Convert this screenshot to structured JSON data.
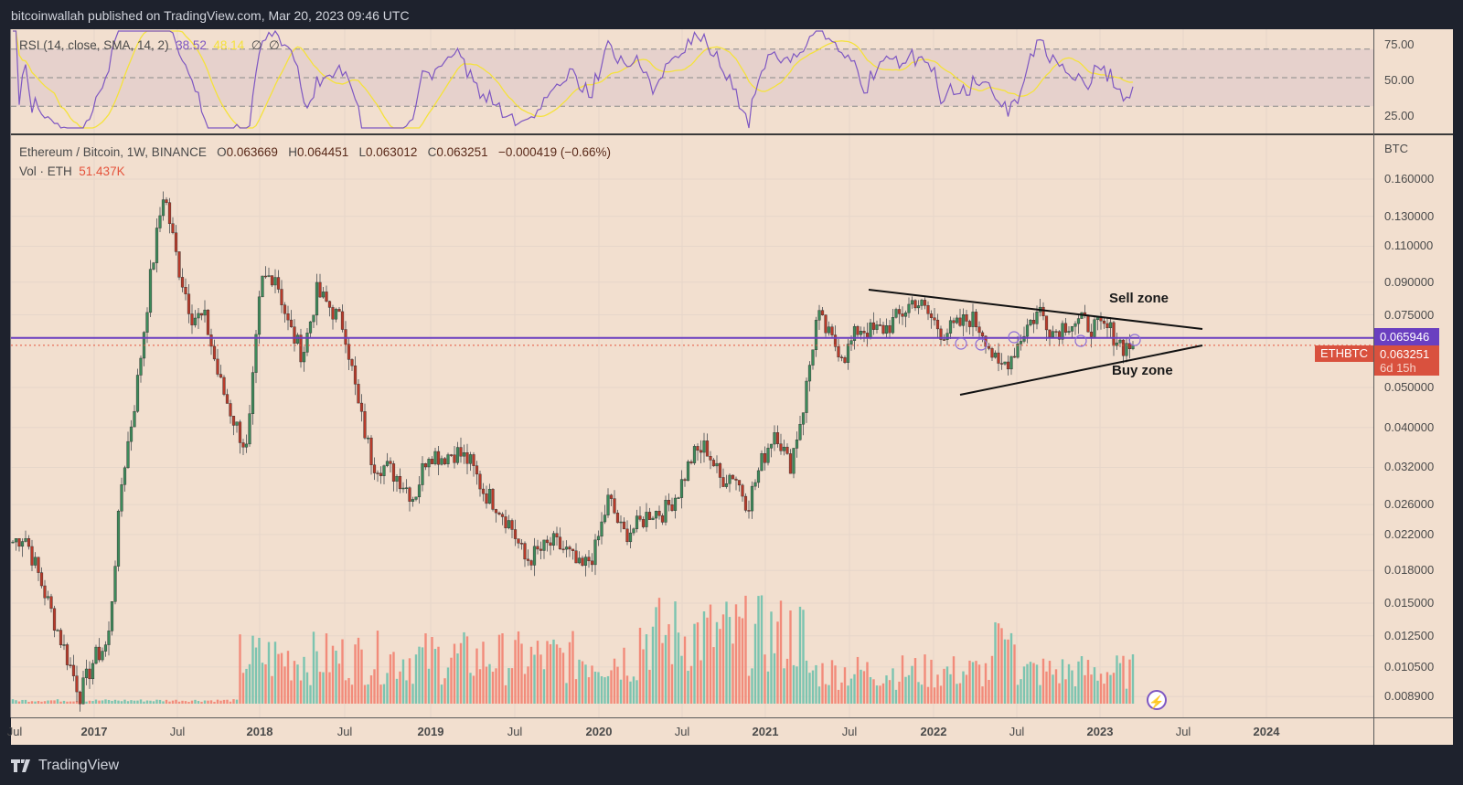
{
  "header": {
    "published_line": "bitcoinwallah published on TradingView.com, Mar 20, 2023 09:46 UTC"
  },
  "rsi_panel": {
    "label": "RSI (14, close, SMA, 14, 2)",
    "rsi_value": "38.52",
    "sma_value": "48.14",
    "extra_1": "∅",
    "extra_2": "∅",
    "axis_ticks": [
      "75.00",
      "50.00",
      "25.00"
    ],
    "upper_band": 70,
    "middle_band": 50,
    "lower_band": 30
  },
  "main_legend": {
    "symbol": "Ethereum / Bitcoin, 1W, BINANCE",
    "open_label": "O",
    "open": "0.063669",
    "high_label": "H",
    "high": "0.064451",
    "low_label": "L",
    "low": "0.063012",
    "close_label": "C",
    "close": "0.063251",
    "change": "−0.000419 (−0.66%)",
    "volume_label": "Vol · ETH",
    "volume_value": "51.437K"
  },
  "price_axis": {
    "unit": "BTC",
    "ticks": [
      "0.160000",
      "0.130000",
      "0.110000",
      "0.090000",
      "0.075000",
      "0.050000",
      "0.040000",
      "0.032000",
      "0.026000",
      "0.022000",
      "0.018000",
      "0.015000",
      "0.012500",
      "0.010500",
      "0.008900"
    ]
  },
  "price_tags": {
    "horizontal_line_value": "0.065946",
    "last_price": "0.063251",
    "countdown": "6d 15h",
    "symbol_tag": "ETHBTC"
  },
  "time_axis": {
    "labels": [
      {
        "text": "Jul",
        "year": false
      },
      {
        "text": "2017",
        "year": true
      },
      {
        "text": "Jul",
        "year": false
      },
      {
        "text": "2018",
        "year": true
      },
      {
        "text": "Jul",
        "year": false
      },
      {
        "text": "2019",
        "year": true
      },
      {
        "text": "Jul",
        "year": false
      },
      {
        "text": "2020",
        "year": true
      },
      {
        "text": "Jul",
        "year": false
      },
      {
        "text": "2021",
        "year": true
      },
      {
        "text": "Jul",
        "year": false
      },
      {
        "text": "2022",
        "year": true
      },
      {
        "text": "Jul",
        "year": false
      },
      {
        "text": "2023",
        "year": true
      },
      {
        "text": "Jul",
        "year": false
      },
      {
        "text": "2024",
        "year": true
      }
    ]
  },
  "annotations": {
    "sell_zone": "Sell zone",
    "buy_zone": "Buy zone"
  },
  "footer": {
    "brand": "TradingView"
  },
  "colors": {
    "background": "#f2dfcf",
    "up_candle": "#3d8a5a",
    "down_candle": "#b83a2a",
    "up_volume": "#7cc4b0",
    "down_volume": "#f28b7a",
    "rsi_line": "#7e57c2",
    "rsi_sma": "#f5e23b",
    "horizontal_line": "#6a3fc0",
    "last_price_line": "#e5533c"
  },
  "chart_data": {
    "type": "candlestick",
    "title": "Ethereum / Bitcoin, 1W, BINANCE",
    "scale": "log",
    "ylabel": "BTC",
    "ylim": [
      0.0089,
      0.17
    ],
    "grid": true,
    "horizontal_line": 0.065946,
    "last_price": 0.063251,
    "ohlc_last": {
      "open": 0.063669,
      "high": 0.064451,
      "low": 0.063012,
      "close": 0.063251
    },
    "volume_last": "51.437K ETH",
    "trendlines": [
      {
        "name": "upper (Sell zone)",
        "from": {
          "date": "2021-05",
          "price": 0.089
        },
        "to": {
          "date": "2023-06",
          "price": 0.068
        }
      },
      {
        "name": "lower (Buy zone)",
        "from": {
          "date": "2022-01",
          "price": 0.05
        },
        "to": {
          "date": "2023-06",
          "price": 0.0659
        }
      }
    ],
    "close_path": [
      {
        "date": "2016-06",
        "close": 0.02
      },
      {
        "date": "2016-08",
        "close": 0.022
      },
      {
        "date": "2016-10",
        "close": 0.014
      },
      {
        "date": "2016-12",
        "close": 0.009
      },
      {
        "date": "2017-01",
        "close": 0.011
      },
      {
        "date": "2017-02",
        "close": 0.012
      },
      {
        "date": "2017-03",
        "close": 0.03
      },
      {
        "date": "2017-04",
        "close": 0.048
      },
      {
        "date": "2017-05",
        "close": 0.09
      },
      {
        "date": "2017-06",
        "close": 0.15
      },
      {
        "date": "2017-07",
        "close": 0.1
      },
      {
        "date": "2017-08",
        "close": 0.075
      },
      {
        "date": "2017-09",
        "close": 0.073
      },
      {
        "date": "2017-10",
        "close": 0.052
      },
      {
        "date": "2017-11",
        "close": 0.042
      },
      {
        "date": "2017-12",
        "close": 0.035
      },
      {
        "date": "2018-01",
        "close": 0.09
      },
      {
        "date": "2018-02",
        "close": 0.095
      },
      {
        "date": "2018-03",
        "close": 0.07
      },
      {
        "date": "2018-04",
        "close": 0.06
      },
      {
        "date": "2018-05",
        "close": 0.085
      },
      {
        "date": "2018-06",
        "close": 0.078
      },
      {
        "date": "2018-07",
        "close": 0.07
      },
      {
        "date": "2018-08",
        "close": 0.045
      },
      {
        "date": "2018-09",
        "close": 0.033
      },
      {
        "date": "2018-10",
        "close": 0.032
      },
      {
        "date": "2018-11",
        "close": 0.03
      },
      {
        "date": "2018-12",
        "close": 0.027
      },
      {
        "date": "2019-01",
        "close": 0.035
      },
      {
        "date": "2019-02",
        "close": 0.034
      },
      {
        "date": "2019-03",
        "close": 0.035
      },
      {
        "date": "2019-04",
        "close": 0.033
      },
      {
        "date": "2019-05",
        "close": 0.028
      },
      {
        "date": "2019-06",
        "close": 0.026
      },
      {
        "date": "2019-07",
        "close": 0.023
      },
      {
        "date": "2019-08",
        "close": 0.019
      },
      {
        "date": "2019-09",
        "close": 0.02
      },
      {
        "date": "2019-10",
        "close": 0.021
      },
      {
        "date": "2019-11",
        "close": 0.02
      },
      {
        "date": "2019-12",
        "close": 0.018
      },
      {
        "date": "2020-01",
        "close": 0.02
      },
      {
        "date": "2020-02",
        "close": 0.027
      },
      {
        "date": "2020-03",
        "close": 0.022
      },
      {
        "date": "2020-04",
        "close": 0.023
      },
      {
        "date": "2020-05",
        "close": 0.025
      },
      {
        "date": "2020-06",
        "close": 0.025
      },
      {
        "date": "2020-07",
        "close": 0.028
      },
      {
        "date": "2020-08",
        "close": 0.034
      },
      {
        "date": "2020-09",
        "close": 0.036
      },
      {
        "date": "2020-10",
        "close": 0.03
      },
      {
        "date": "2020-11",
        "close": 0.031
      },
      {
        "date": "2020-12",
        "close": 0.026
      },
      {
        "date": "2021-01",
        "close": 0.033
      },
      {
        "date": "2021-02",
        "close": 0.04
      },
      {
        "date": "2021-03",
        "close": 0.032
      },
      {
        "date": "2021-04",
        "close": 0.045
      },
      {
        "date": "2021-05",
        "close": 0.075
      },
      {
        "date": "2021-06",
        "close": 0.065
      },
      {
        "date": "2021-07",
        "close": 0.06
      },
      {
        "date": "2021-08",
        "close": 0.07
      },
      {
        "date": "2021-09",
        "close": 0.068
      },
      {
        "date": "2021-10",
        "close": 0.07
      },
      {
        "date": "2021-11",
        "close": 0.075
      },
      {
        "date": "2021-12",
        "close": 0.082
      },
      {
        "date": "2022-01",
        "close": 0.075
      },
      {
        "date": "2022-02",
        "close": 0.068
      },
      {
        "date": "2022-03",
        "close": 0.07
      },
      {
        "date": "2022-04",
        "close": 0.074
      },
      {
        "date": "2022-05",
        "close": 0.068
      },
      {
        "date": "2022-06",
        "close": 0.055
      },
      {
        "date": "2022-07",
        "close": 0.06
      },
      {
        "date": "2022-08",
        "close": 0.07
      },
      {
        "date": "2022-09",
        "close": 0.077
      },
      {
        "date": "2022-10",
        "close": 0.068
      },
      {
        "date": "2022-11",
        "close": 0.072
      },
      {
        "date": "2022-12",
        "close": 0.072
      },
      {
        "date": "2023-01",
        "close": 0.07
      },
      {
        "date": "2023-02",
        "close": 0.069
      },
      {
        "date": "2023-03",
        "close": 0.063
      }
    ]
  }
}
